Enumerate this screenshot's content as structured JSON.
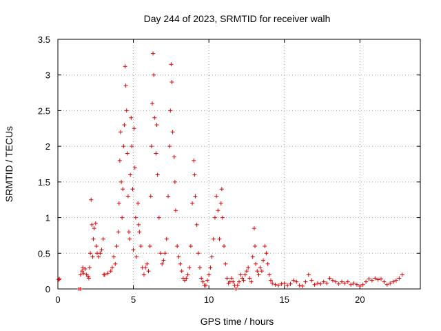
{
  "chart_data": {
    "type": "scatter",
    "title": "Day 244 of 2023, SRMTID for receiver walh",
    "xlabel": "GPS time / hours",
    "ylabel": "SRMTID / TECUs",
    "xlim": [
      0,
      24
    ],
    "ylim": [
      0,
      3.5
    ],
    "xticks": [
      0,
      5,
      10,
      15,
      20
    ],
    "xtick_labels": [
      "0",
      "5",
      "10",
      "15",
      "20"
    ],
    "yticks": [
      0,
      0.5,
      1,
      1.5,
      2,
      2.5,
      3,
      3.5
    ],
    "ytick_labels": [
      "0",
      "0.5",
      "1",
      "1.5",
      "2",
      "2.5",
      "3",
      "3.5"
    ],
    "grid": true,
    "marker": "+",
    "marker_color": "#e00000",
    "series": [
      {
        "name": "SRMTID",
        "points": [
          [
            0.05,
            0.13
          ],
          [
            0.1,
            0.14
          ],
          [
            1.4,
            0.0
          ],
          [
            1.5,
            0.0
          ],
          [
            1.5,
            0.2
          ],
          [
            1.6,
            0.25
          ],
          [
            1.65,
            0.3
          ],
          [
            1.7,
            0.22
          ],
          [
            1.8,
            0.28
          ],
          [
            1.9,
            0.2
          ],
          [
            2.0,
            0.18
          ],
          [
            2.05,
            0.15
          ],
          [
            2.1,
            0.3
          ],
          [
            2.15,
            0.5
          ],
          [
            2.2,
            1.25
          ],
          [
            2.25,
            0.9
          ],
          [
            2.3,
            0.45
          ],
          [
            2.35,
            0.7
          ],
          [
            2.4,
            0.85
          ],
          [
            2.5,
            0.92
          ],
          [
            2.55,
            0.6
          ],
          [
            2.6,
            0.5
          ],
          [
            2.7,
            0.45
          ],
          [
            2.8,
            0.5
          ],
          [
            2.9,
            0.55
          ],
          [
            3.0,
            0.7
          ],
          [
            3.05,
            0.2
          ],
          [
            3.1,
            0.2
          ],
          [
            3.3,
            0.22
          ],
          [
            3.5,
            0.25
          ],
          [
            3.6,
            0.3
          ],
          [
            3.7,
            0.45
          ],
          [
            3.8,
            0.35
          ],
          [
            3.9,
            0.6
          ],
          [
            4.0,
            0.8
          ],
          [
            4.05,
            1.2
          ],
          [
            4.1,
            1.8
          ],
          [
            4.15,
            2.2
          ],
          [
            4.2,
            1.5
          ],
          [
            4.25,
            1.0
          ],
          [
            4.3,
            1.4
          ],
          [
            4.35,
            2.0
          ],
          [
            4.4,
            2.3
          ],
          [
            4.45,
            3.12
          ],
          [
            4.5,
            2.85
          ],
          [
            4.55,
            2.5
          ],
          [
            4.6,
            1.9
          ],
          [
            4.65,
            1.3
          ],
          [
            4.7,
            0.8
          ],
          [
            4.75,
            0.7
          ],
          [
            4.8,
            1.6
          ],
          [
            4.85,
            2.4
          ],
          [
            4.9,
            2.0
          ],
          [
            4.95,
            1.4
          ],
          [
            5.0,
            0.55
          ],
          [
            5.05,
            2.25
          ],
          [
            5.1,
            1.7
          ],
          [
            5.15,
            1.0
          ],
          [
            5.2,
            0.45
          ],
          [
            5.3,
            1.2
          ],
          [
            5.35,
            0.9
          ],
          [
            5.4,
            0.8
          ],
          [
            5.5,
            0.6
          ],
          [
            5.6,
            0.3
          ],
          [
            5.7,
            0.2
          ],
          [
            5.8,
            0.3
          ],
          [
            5.9,
            0.35
          ],
          [
            6.0,
            0.25
          ],
          [
            6.1,
            0.6
          ],
          [
            6.15,
            1.3
          ],
          [
            6.2,
            2.0
          ],
          [
            6.25,
            2.6
          ],
          [
            6.3,
            3.3
          ],
          [
            6.35,
            3.0
          ],
          [
            6.4,
            2.4
          ],
          [
            6.5,
            1.9
          ],
          [
            6.55,
            2.3
          ],
          [
            6.6,
            1.6
          ],
          [
            6.7,
            1.0
          ],
          [
            6.8,
            0.5
          ],
          [
            6.9,
            0.35
          ],
          [
            7.0,
            0.4
          ],
          [
            7.1,
            0.5
          ],
          [
            7.2,
            0.7
          ],
          [
            7.3,
            1.3
          ],
          [
            7.4,
            2.0
          ],
          [
            7.45,
            2.5
          ],
          [
            7.5,
            3.15
          ],
          [
            7.55,
            2.9
          ],
          [
            7.6,
            2.2
          ],
          [
            7.7,
            1.85
          ],
          [
            7.75,
            1.5
          ],
          [
            7.8,
            1.1
          ],
          [
            7.9,
            0.6
          ],
          [
            8.0,
            0.45
          ],
          [
            8.1,
            0.35
          ],
          [
            8.2,
            0.25
          ],
          [
            8.3,
            0.15
          ],
          [
            8.4,
            0.12
          ],
          [
            8.5,
            0.15
          ],
          [
            8.6,
            0.2
          ],
          [
            8.7,
            0.3
          ],
          [
            8.8,
            0.6
          ],
          [
            8.9,
            1.2
          ],
          [
            9.0,
            1.8
          ],
          [
            9.05,
            1.6
          ],
          [
            9.1,
            1.3
          ],
          [
            9.2,
            0.9
          ],
          [
            9.3,
            0.5
          ],
          [
            9.4,
            0.3
          ],
          [
            9.5,
            0.15
          ],
          [
            9.6,
            0.1
          ],
          [
            9.7,
            0.05
          ],
          [
            9.8,
            0.05
          ],
          [
            9.9,
            0.12
          ],
          [
            10.0,
            0.2
          ],
          [
            10.1,
            0.3
          ],
          [
            10.2,
            0.45
          ],
          [
            10.3,
            0.7
          ],
          [
            10.4,
            1.0
          ],
          [
            10.5,
            1.3
          ],
          [
            10.6,
            1.1
          ],
          [
            10.7,
            0.7
          ],
          [
            10.8,
            1.2
          ],
          [
            10.85,
            1.4
          ],
          [
            10.9,
            1.0
          ],
          [
            11.0,
            0.6
          ],
          [
            11.1,
            0.35
          ],
          [
            11.2,
            0.15
          ],
          [
            11.3,
            0.08
          ],
          [
            11.4,
            0.1
          ],
          [
            11.5,
            0.15
          ],
          [
            11.6,
            0.1
          ],
          [
            11.7,
            0.05
          ],
          [
            11.8,
            0.0
          ],
          [
            11.9,
            0.05
          ],
          [
            12.0,
            0.1
          ],
          [
            12.1,
            0.2
          ],
          [
            12.2,
            0.15
          ],
          [
            12.3,
            0.12
          ],
          [
            12.4,
            0.2
          ],
          [
            12.5,
            0.25
          ],
          [
            12.6,
            0.3
          ],
          [
            12.7,
            0.15
          ],
          [
            12.8,
            0.1
          ],
          [
            12.9,
            0.45
          ],
          [
            13.0,
            0.85
          ],
          [
            13.05,
            0.6
          ],
          [
            13.1,
            0.35
          ],
          [
            13.2,
            0.25
          ],
          [
            13.3,
            0.2
          ],
          [
            13.4,
            0.3
          ],
          [
            13.5,
            0.25
          ],
          [
            13.6,
            0.4
          ],
          [
            13.7,
            0.6
          ],
          [
            13.8,
            0.5
          ],
          [
            13.9,
            0.35
          ],
          [
            14.0,
            0.2
          ],
          [
            14.1,
            0.12
          ],
          [
            14.2,
            0.08
          ],
          [
            14.4,
            0.06
          ],
          [
            14.6,
            0.05
          ],
          [
            14.8,
            0.07
          ],
          [
            15.0,
            0.08
          ],
          [
            15.2,
            0.05
          ],
          [
            15.4,
            0.07
          ],
          [
            15.6,
            0.12
          ],
          [
            15.8,
            0.1
          ],
          [
            16.0,
            0.05
          ],
          [
            16.2,
            0.04
          ],
          [
            16.4,
            0.1
          ],
          [
            16.6,
            0.2
          ],
          [
            16.8,
            0.12
          ],
          [
            17.0,
            0.06
          ],
          [
            17.2,
            0.08
          ],
          [
            17.4,
            0.07
          ],
          [
            17.6,
            0.1
          ],
          [
            17.8,
            0.08
          ],
          [
            18.0,
            0.15
          ],
          [
            18.2,
            0.12
          ],
          [
            18.4,
            0.1
          ],
          [
            18.6,
            0.07
          ],
          [
            18.8,
            0.1
          ],
          [
            19.0,
            0.08
          ],
          [
            19.2,
            0.1
          ],
          [
            19.4,
            0.06
          ],
          [
            19.6,
            0.08
          ],
          [
            19.8,
            0.06
          ],
          [
            20.0,
            0.04
          ],
          [
            20.2,
            0.06
          ],
          [
            20.4,
            0.1
          ],
          [
            20.6,
            0.14
          ],
          [
            20.8,
            0.12
          ],
          [
            21.0,
            0.15
          ],
          [
            21.2,
            0.13
          ],
          [
            21.4,
            0.14
          ],
          [
            21.6,
            0.1
          ],
          [
            21.8,
            0.06
          ],
          [
            22.0,
            0.08
          ],
          [
            22.2,
            0.1
          ],
          [
            22.4,
            0.12
          ],
          [
            22.6,
            0.15
          ],
          [
            22.8,
            0.2
          ]
        ]
      }
    ]
  }
}
